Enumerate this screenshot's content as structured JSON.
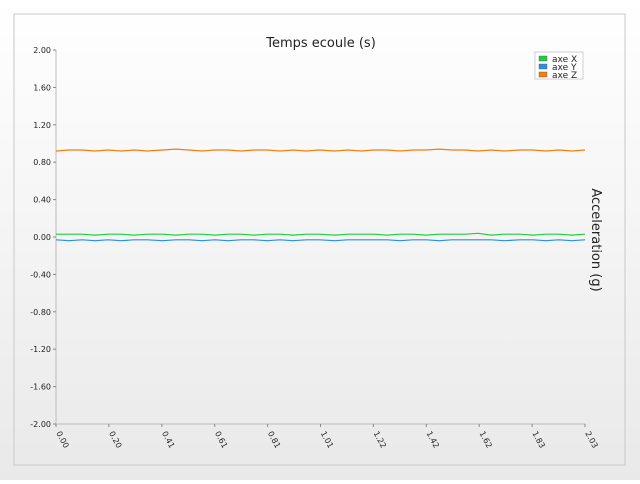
{
  "chart_data": {
    "type": "line",
    "title": "Temps ecoule (s)",
    "xlabel": "Temps ecoule (s)",
    "ylabel": "Acceleration (g)",
    "xlim": [
      0.0,
      2.03
    ],
    "ylim": [
      -2.0,
      2.0
    ],
    "x_tick_labels": [
      "0.00",
      "0.20",
      "0.41",
      "0.61",
      "0.81",
      "1.01",
      "1.22",
      "1.42",
      "1.62",
      "1.83",
      "2.03"
    ],
    "y_tick_labels": [
      "2.00",
      "1.60",
      "1.20",
      "0.80",
      "0.40",
      "0.00",
      "-0.40",
      "-0.80",
      "-1.20",
      "-1.60",
      "-2.00"
    ],
    "y_ticks": [
      2.0,
      1.6,
      1.2,
      0.8,
      0.4,
      0.0,
      -0.4,
      -0.8,
      -1.2,
      -1.6,
      -2.0
    ],
    "grid": false,
    "legend_position": "top-right",
    "x": [
      0.0,
      0.05,
      0.1,
      0.15,
      0.2,
      0.25,
      0.3,
      0.35,
      0.41,
      0.46,
      0.51,
      0.56,
      0.61,
      0.66,
      0.71,
      0.76,
      0.81,
      0.86,
      0.91,
      0.96,
      1.01,
      1.07,
      1.12,
      1.17,
      1.22,
      1.27,
      1.32,
      1.37,
      1.42,
      1.47,
      1.52,
      1.57,
      1.62,
      1.67,
      1.72,
      1.78,
      1.83,
      1.88,
      1.93,
      1.98,
      2.03
    ],
    "series": [
      {
        "name": "axe X",
        "color": "#22cc44",
        "values": [
          0.03,
          0.03,
          0.03,
          0.02,
          0.03,
          0.03,
          0.02,
          0.03,
          0.03,
          0.02,
          0.03,
          0.03,
          0.02,
          0.03,
          0.03,
          0.02,
          0.03,
          0.03,
          0.02,
          0.03,
          0.03,
          0.02,
          0.03,
          0.03,
          0.03,
          0.02,
          0.03,
          0.03,
          0.02,
          0.03,
          0.03,
          0.03,
          0.04,
          0.02,
          0.03,
          0.03,
          0.02,
          0.03,
          0.03,
          0.02,
          0.03
        ]
      },
      {
        "name": "axe Y",
        "color": "#2a8fe6",
        "values": [
          -0.03,
          -0.04,
          -0.03,
          -0.04,
          -0.03,
          -0.04,
          -0.03,
          -0.03,
          -0.04,
          -0.03,
          -0.03,
          -0.04,
          -0.03,
          -0.04,
          -0.03,
          -0.03,
          -0.04,
          -0.03,
          -0.04,
          -0.03,
          -0.03,
          -0.04,
          -0.03,
          -0.03,
          -0.03,
          -0.03,
          -0.04,
          -0.03,
          -0.03,
          -0.04,
          -0.03,
          -0.03,
          -0.03,
          -0.03,
          -0.04,
          -0.03,
          -0.03,
          -0.04,
          -0.03,
          -0.04,
          -0.03
        ]
      },
      {
        "name": "axe Z",
        "color": "#f07f10",
        "values": [
          0.92,
          0.93,
          0.93,
          0.92,
          0.93,
          0.92,
          0.93,
          0.92,
          0.93,
          0.94,
          0.93,
          0.92,
          0.93,
          0.93,
          0.92,
          0.93,
          0.93,
          0.92,
          0.93,
          0.92,
          0.93,
          0.92,
          0.93,
          0.92,
          0.93,
          0.93,
          0.92,
          0.93,
          0.93,
          0.94,
          0.93,
          0.93,
          0.92,
          0.93,
          0.92,
          0.93,
          0.93,
          0.92,
          0.93,
          0.92,
          0.93
        ]
      }
    ]
  }
}
